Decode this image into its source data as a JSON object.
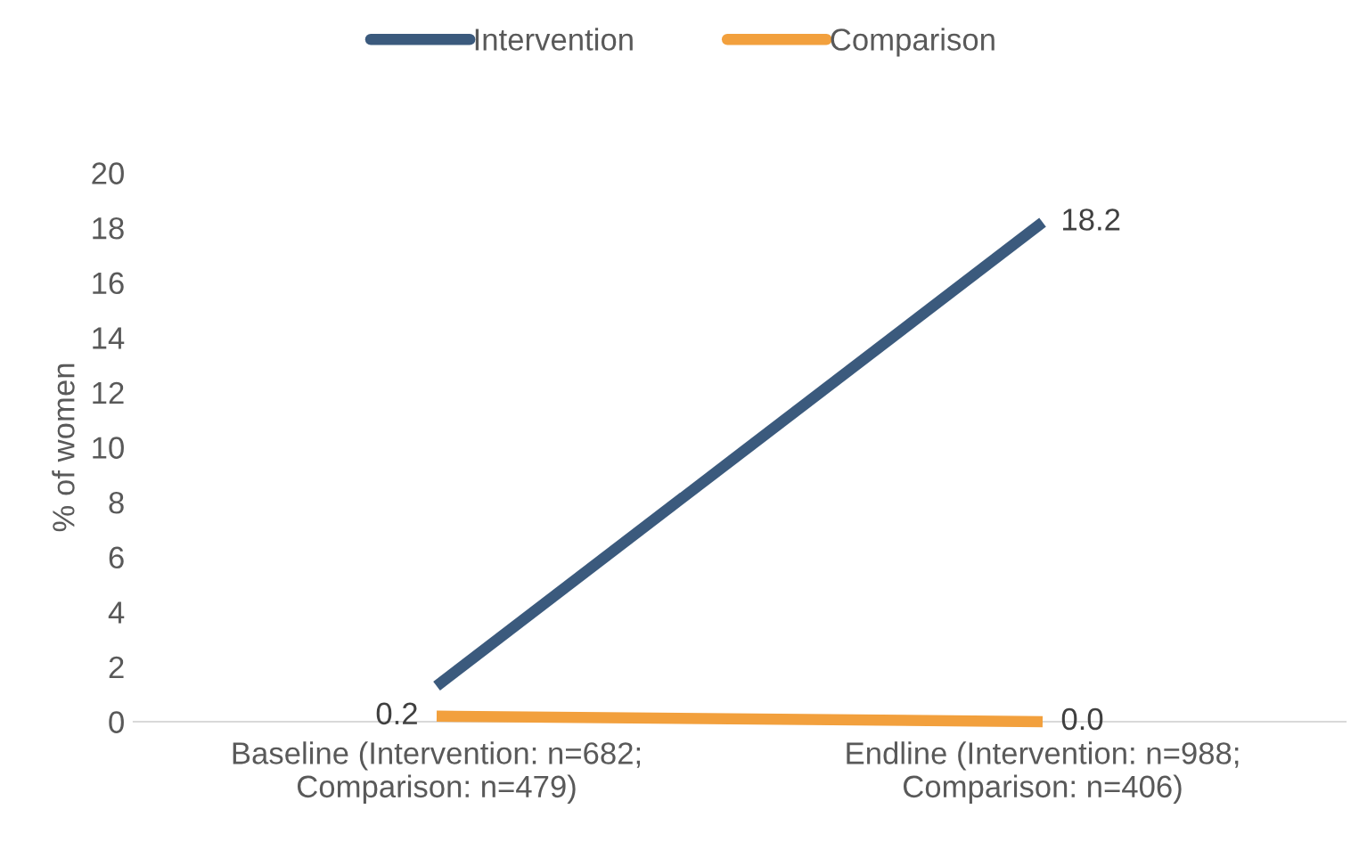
{
  "chart_data": {
    "type": "line",
    "ylabel": "% of women",
    "categories": [
      "Baseline (Intervention: n=682;\nComparison: n=479)",
      "Endline (Intervention: n=988;\nComparison: n=406)"
    ],
    "series": [
      {
        "name": "Intervention",
        "color": "#3b5a7d",
        "values": [
          1.3,
          18.2
        ],
        "value_labels": [
          null,
          "18.2"
        ]
      },
      {
        "name": "Comparison",
        "color": "#f2a03d",
        "values": [
          0.2,
          0.0
        ],
        "value_labels": [
          "0.2",
          "0.0"
        ]
      }
    ],
    "ylim": [
      0,
      20
    ],
    "yticks": [
      0,
      2,
      4,
      6,
      8,
      10,
      12,
      14,
      16,
      18,
      20
    ],
    "grid": false,
    "legend": "top",
    "marker": "none",
    "line_style": "solid"
  }
}
